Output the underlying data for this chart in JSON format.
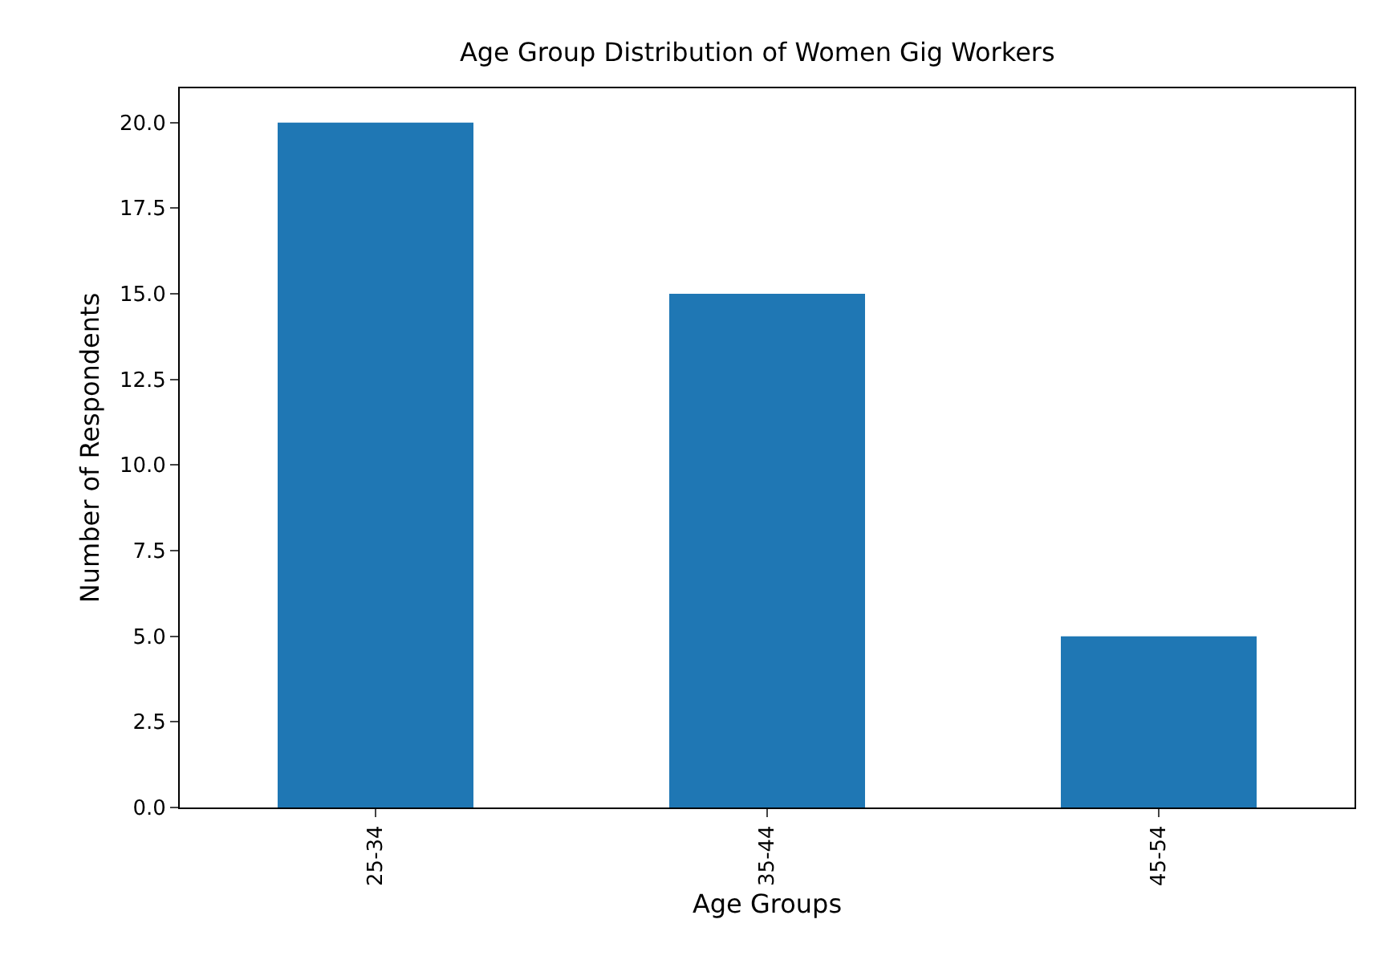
{
  "chart_data": {
    "type": "bar",
    "title": "Age Group Distribution of Women Gig Workers",
    "xlabel": "Age Groups",
    "ylabel": "Number of Respondents",
    "categories": [
      "25-34",
      "35-44",
      "45-54"
    ],
    "values": [
      20,
      15,
      5
    ],
    "color": "#1f77b4",
    "ylim": [
      0,
      21
    ],
    "yticks": [
      {
        "value": 0,
        "label": "0.0"
      },
      {
        "value": 2.5,
        "label": "2.5"
      },
      {
        "value": 5,
        "label": "5.0"
      },
      {
        "value": 7.5,
        "label": "7.5"
      },
      {
        "value": 10,
        "label": "10.0"
      },
      {
        "value": 12.5,
        "label": "12.5"
      },
      {
        "value": 15,
        "label": "15.0"
      },
      {
        "value": 17.5,
        "label": "17.5"
      },
      {
        "value": 20,
        "label": "20.0"
      }
    ],
    "grid": false
  }
}
